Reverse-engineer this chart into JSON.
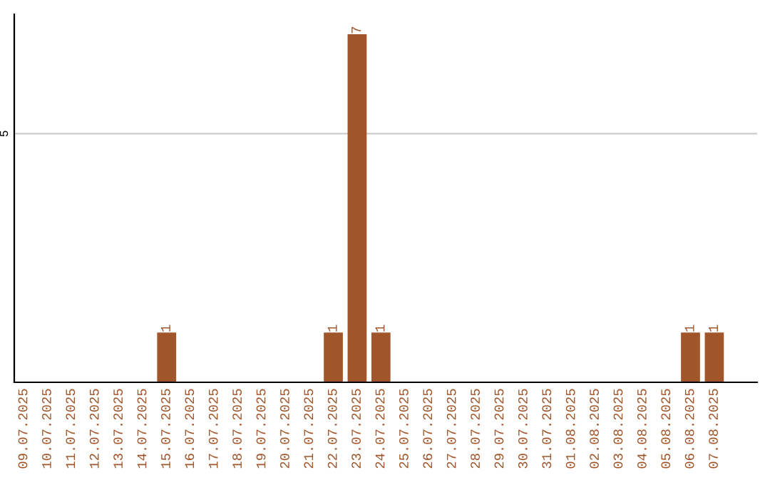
{
  "chart_data": {
    "type": "bar",
    "categories": [
      "09.07.2025",
      "10.07.2025",
      "11.07.2025",
      "12.07.2025",
      "13.07.2025",
      "14.07.2025",
      "15.07.2025",
      "16.07.2025",
      "17.07.2025",
      "18.07.2025",
      "19.07.2025",
      "20.07.2025",
      "21.07.2025",
      "22.07.2025",
      "23.07.2025",
      "24.07.2025",
      "25.07.2025",
      "26.07.2025",
      "27.07.2025",
      "28.07.2025",
      "29.07.2025",
      "30.07.2025",
      "31.07.2025",
      "01.08.2025",
      "02.08.2025",
      "03.08.2025",
      "04.08.2025",
      "05.08.2025",
      "06.08.2025",
      "07.08.2025"
    ],
    "values": [
      0,
      0,
      0,
      0,
      0,
      0,
      1,
      0,
      0,
      0,
      0,
      0,
      0,
      1,
      7,
      1,
      0,
      0,
      0,
      0,
      0,
      0,
      0,
      0,
      0,
      0,
      0,
      0,
      1,
      1
    ],
    "value_labels": [
      null,
      null,
      null,
      null,
      null,
      null,
      "1",
      null,
      null,
      null,
      null,
      null,
      null,
      "1",
      "7",
      "1",
      null,
      null,
      null,
      null,
      null,
      null,
      null,
      null,
      null,
      null,
      null,
      null,
      "1",
      "1"
    ],
    "color": "#a0562a",
    "ylim": [
      0,
      7.4
    ],
    "yticks": [
      5
    ],
    "grid": "y"
  }
}
